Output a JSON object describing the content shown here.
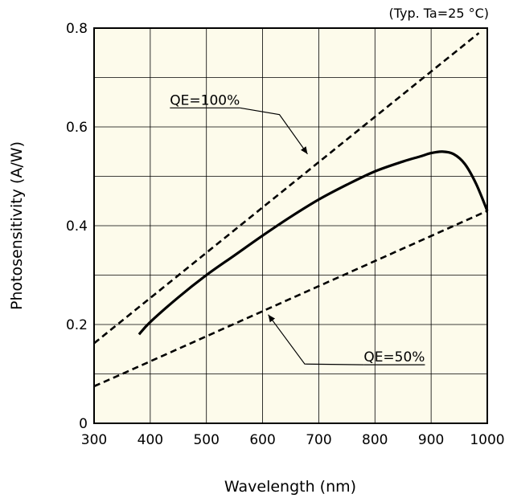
{
  "chart_data": {
    "type": "line",
    "title": "",
    "note": "(Typ. Ta=25 °C)",
    "xlabel": "Wavelength (nm)",
    "ylabel": "Photosensitivity (A/W)",
    "xlim": [
      300,
      1000
    ],
    "ylim": [
      0,
      0.8
    ],
    "xticks": [
      300,
      400,
      500,
      600,
      700,
      800,
      900,
      1000
    ],
    "yticks": [
      0,
      0.2,
      0.4,
      0.6,
      0.8
    ],
    "ytick_labels": [
      "0",
      "0.2",
      "0.4",
      "0.6",
      "0.8"
    ],
    "grid": true,
    "series": [
      {
        "style": "solid",
        "x": [
          380,
          400,
          450,
          500,
          550,
          600,
          650,
          700,
          750,
          800,
          850,
          880,
          900,
          920,
          940,
          960,
          980,
          1000
        ],
        "y": [
          0.18,
          0.205,
          0.255,
          0.3,
          0.34,
          0.38,
          0.418,
          0.453,
          0.483,
          0.51,
          0.53,
          0.54,
          0.547,
          0.55,
          0.545,
          0.525,
          0.485,
          0.43
        ]
      },
      {
        "style": "dashed",
        "x": [
          300,
          985
        ],
        "y": [
          0.162,
          0.79
        ]
      },
      {
        "style": "dashed",
        "x": [
          300,
          350,
          1000
        ],
        "y": [
          0.075,
          0.1,
          0.43
        ]
      }
    ],
    "annotations": [
      {
        "text": "QE=100%",
        "text_at": [
          435,
          0.645
        ],
        "bend_at": [
          630,
          0.625
        ],
        "point_at": [
          680,
          0.545
        ]
      },
      {
        "text": "QE=50%",
        "text_at": [
          780,
          0.125
        ],
        "bend_at": [
          675,
          0.12
        ],
        "point_at": [
          610,
          0.22
        ]
      }
    ]
  }
}
